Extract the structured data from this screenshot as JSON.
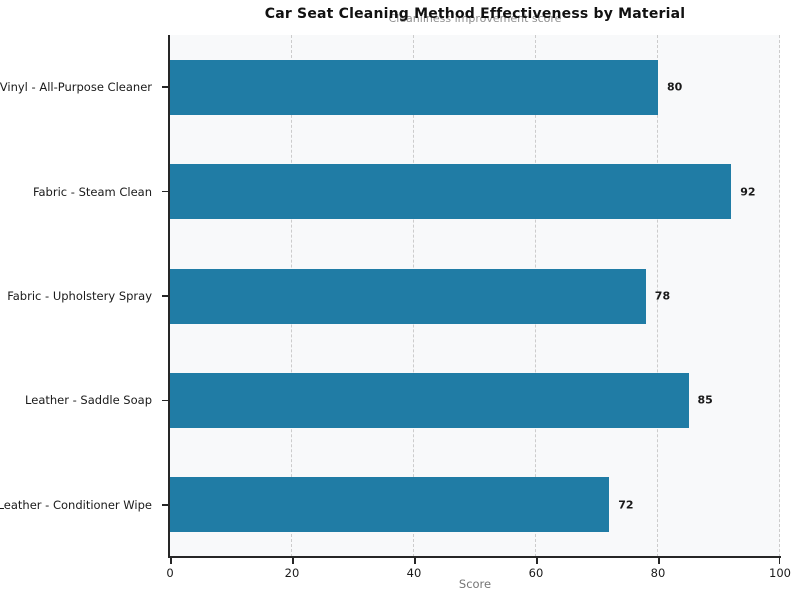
{
  "chart_data": {
    "type": "bar",
    "orientation": "horizontal",
    "title": "Car Seat Cleaning Method Effectiveness by Material",
    "subtitle": "Cleanliness improvement score",
    "xlabel": "Score",
    "categories": [
      "Vinyl - All-Purpose Cleaner",
      "Fabric - Steam Clean",
      "Fabric - Upholstery Spray",
      "Leather - Saddle Soap",
      "Leather - Conditioner Wipe"
    ],
    "values": [
      80,
      92,
      78,
      85,
      72
    ],
    "xlim": [
      0,
      100
    ],
    "xticks": [
      0,
      20,
      40,
      60,
      80,
      100
    ],
    "grid": "vertical-dashed",
    "legend": "none",
    "colors": {
      "bar": "#207ca5",
      "plot_background": "#f8f9fa",
      "gridline": "#cccccc",
      "spine": "#262626",
      "tick_text": "#1a1a1a",
      "subtitle_text": "#8f8f8f",
      "axis_label_text": "#757575"
    }
  }
}
